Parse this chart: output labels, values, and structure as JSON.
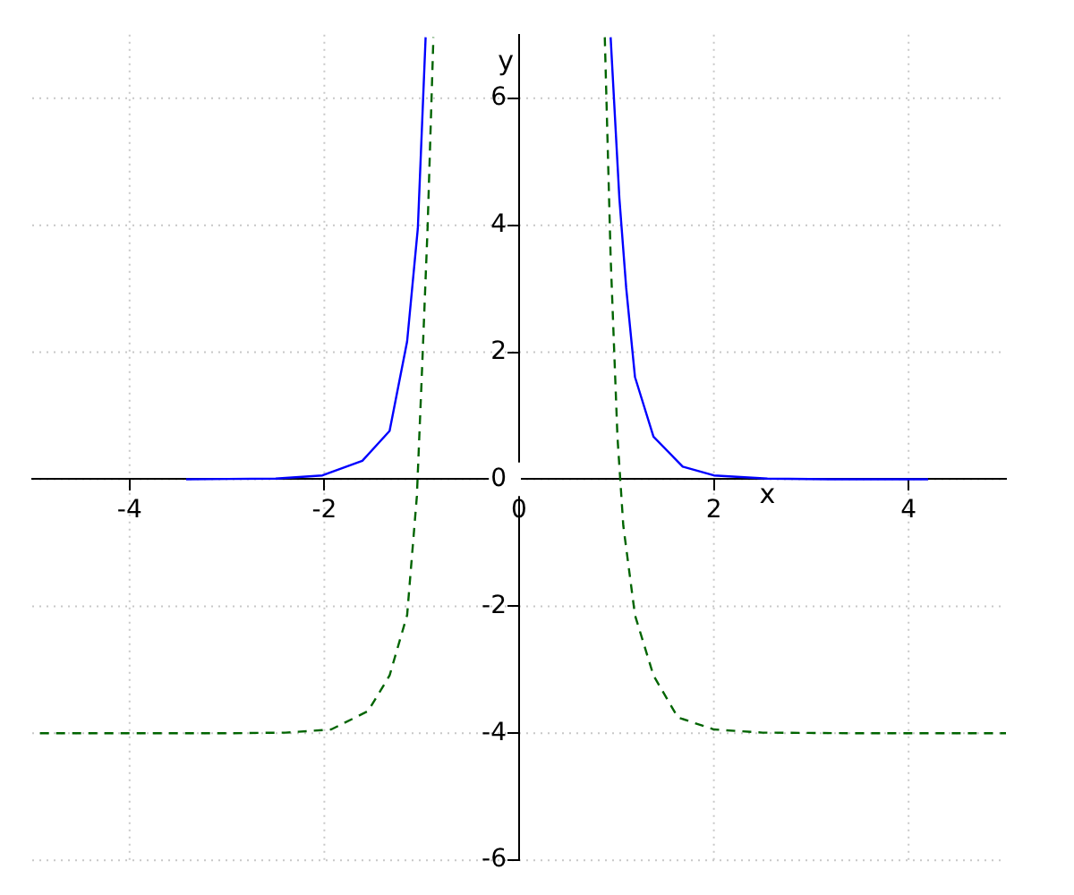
{
  "chart_data": {
    "type": "line",
    "xlabel": "x",
    "ylabel": "y",
    "xlim": [
      -5,
      5
    ],
    "ylim": [
      -6,
      7
    ],
    "xticks": [
      -4,
      -2,
      0,
      2,
      4
    ],
    "yticks": [
      -6,
      -4,
      -2,
      0,
      2,
      4,
      6
    ],
    "grid": true,
    "legend": false,
    "marker": "none",
    "series": [
      {
        "color": "#0000ff",
        "line_style": "solid",
        "x": [
          -3.42,
          -2.5,
          -2.02,
          -1.61,
          -1.33,
          -1.15,
          -1.04,
          -0.96
        ],
        "values": [
          0,
          0.01,
          0.06,
          0.29,
          0.76,
          2.17,
          3.95,
          6.96
        ]
      },
      {
        "color": "#0000ff",
        "line_style": "solid",
        "x": [
          0.94,
          1.03,
          1.1,
          1.19,
          1.38,
          1.68,
          2,
          2.55,
          3.2,
          4.2
        ],
        "values": [
          6.96,
          4.42,
          3.01,
          1.61,
          0.67,
          0.2,
          0.06,
          0.01,
          0,
          0
        ]
      },
      {
        "color": "#006400",
        "line_style": "dashed",
        "x": [
          -4.92,
          -3,
          -2.4,
          -1.93,
          -1.55,
          -1.33,
          -1.15,
          -1.05,
          -1,
          -0.94,
          -0.88
        ],
        "values": [
          -4,
          -4,
          -3.99,
          -3.94,
          -3.65,
          -3.09,
          -2.14,
          -0.27,
          1.6,
          3.95,
          6.96
        ]
      },
      {
        "color": "#006400",
        "line_style": "dashed",
        "x": [
          0.88,
          0.94,
          1.01,
          1.07,
          1.19,
          1.38,
          1.63,
          2,
          2.5,
          3.5,
          5
        ],
        "values": [
          6.96,
          3.5,
          0.67,
          -0.73,
          -2.14,
          -3.09,
          -3.75,
          -3.94,
          -3.99,
          -4,
          -4
        ]
      }
    ]
  }
}
